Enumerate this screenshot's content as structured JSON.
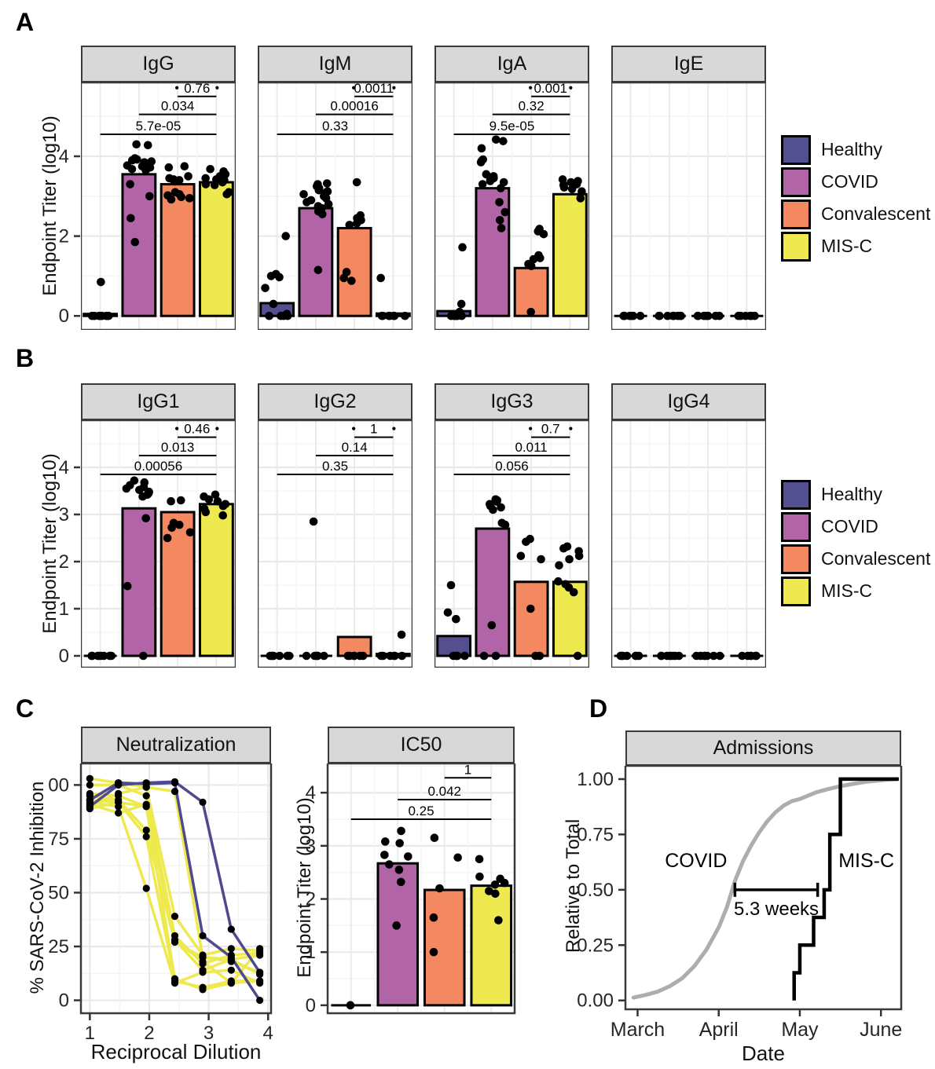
{
  "panel_labels": {
    "a": "A",
    "b": "B",
    "c": "C",
    "d": "D"
  },
  "groups": [
    {
      "name": "Healthy",
      "color": "#54508F"
    },
    {
      "name": "COVID",
      "color": "#B164A6"
    },
    {
      "name": "Convalescent",
      "color": "#F48860"
    },
    {
      "name": "MIS-C",
      "color": "#EDE94F"
    }
  ],
  "styles": {
    "header_bg": "#D8D8D8",
    "panel_border": "#3A3A3A",
    "grid_major": "#E9E9E9",
    "grid_minor": "#F5F5F5",
    "tick_color": "#262626",
    "covid_curve_color": "#ADADAD",
    "navy_line": "#4E4A8E",
    "yellow_line": "#EDE94F"
  },
  "chart_data": [
    {
      "id": "panel-a",
      "type": "bar",
      "ylabel": "Endpoint Titer (log10)",
      "yticks": [
        0,
        2,
        4
      ],
      "ylim": [
        -0.35,
        5.85
      ],
      "facets": [
        {
          "title": "IgG",
          "bar_values": [
            0.05,
            3.55,
            3.3,
            3.35
          ],
          "points": [
            [
              0,
              0,
              0,
              0,
              0,
              0,
              0,
              0,
              0.85
            ],
            [
              4.3,
              4.28,
              3.95,
              3.92,
              3.9,
              3.87,
              3.85,
              3.82,
              3.8,
              3.77,
              3.75,
              3.72,
              3.68,
              3.65,
              3.3,
              3.0,
              2.45,
              1.85
            ],
            [
              3.75,
              3.72,
              3.5,
              3.45,
              3.42,
              3.4,
              3.37,
              3.1,
              3.05,
              3.02,
              2.98,
              2.95,
              2.92
            ],
            [
              3.68,
              3.62,
              3.55,
              3.5,
              3.45,
              3.42,
              3.4,
              3.35,
              3.3,
              3.28,
              3.1,
              3.05
            ]
          ],
          "pvalues": [
            {
              "label": "5.7e-05",
              "from": 0,
              "to": 3,
              "y": 4.55
            },
            {
              "label": "0.034",
              "from": 1,
              "to": 3,
              "y": 5.05
            },
            {
              "label": "0.76",
              "from": 2,
              "to": 3,
              "y": 5.5,
              "end_dots": true
            }
          ]
        },
        {
          "title": "IgM",
          "bar_values": [
            0.32,
            2.7,
            2.2,
            0.06
          ],
          "points": [
            [
              2.0,
              1.05,
              1.0,
              0.97,
              0.7,
              0.3,
              0.05,
              0,
              0,
              0,
              0
            ],
            [
              3.32,
              3.3,
              3.25,
              3.2,
              3.15,
              3.12,
              3.1,
              3.05,
              3.0,
              2.95,
              2.9,
              2.85,
              2.8,
              2.75,
              2.7,
              2.62,
              2.55,
              1.15
            ],
            [
              3.35,
              2.52,
              2.45,
              2.4,
              2.32,
              2.28,
              1.1,
              0.95,
              0.88
            ],
            [
              0.95,
              0,
              0,
              0,
              0,
              0,
              0,
              0
            ]
          ],
          "pvalues": [
            {
              "label": "0.33",
              "from": 0,
              "to": 3,
              "y": 4.55
            },
            {
              "label": "0.00016",
              "from": 1,
              "to": 3,
              "y": 5.05
            },
            {
              "label": "0.0011",
              "from": 2,
              "to": 3,
              "y": 5.5,
              "end_dots": true
            }
          ]
        },
        {
          "title": "IgA",
          "bar_values": [
            0.12,
            3.2,
            1.2,
            3.05
          ],
          "points": [
            [
              1.72,
              0.3,
              0.1,
              0,
              0,
              0,
              0,
              0
            ],
            [
              4.42,
              4.38,
              4.2,
              3.92,
              3.88,
              3.85,
              3.55,
              3.5,
              3.45,
              3.42,
              3.38,
              3.35,
              3.3,
              3.2,
              2.85,
              2.6,
              2.4,
              2.2
            ],
            [
              2.18,
              2.12,
              2.05,
              1.52,
              1.45,
              1.42,
              1.3,
              1.25,
              0.1
            ],
            [
              3.42,
              3.38,
              3.35,
              3.3,
              3.28,
              3.22,
              3.18,
              3.12,
              2.95
            ]
          ],
          "pvalues": [
            {
              "label": "9.5e-05",
              "from": 0,
              "to": 3,
              "y": 4.55
            },
            {
              "label": "0.32",
              "from": 1,
              "to": 3,
              "y": 5.05
            },
            {
              "label": "0.001",
              "from": 2,
              "to": 3,
              "y": 5.5,
              "end_dots": true
            }
          ]
        },
        {
          "title": "IgE",
          "bar_values": [
            0,
            0,
            0,
            0
          ],
          "points": [
            [
              0,
              0,
              0,
              0,
              0,
              0,
              0
            ],
            [
              0,
              0,
              0,
              0,
              0,
              0,
              0,
              0
            ],
            [
              0,
              0,
              0,
              0,
              0,
              0,
              0
            ],
            [
              0,
              0,
              0,
              0,
              0,
              0
            ]
          ],
          "pvalues": []
        }
      ]
    },
    {
      "id": "panel-b",
      "type": "bar",
      "ylabel": "Endpoint Titer (log10)",
      "yticks": [
        0,
        1,
        2,
        3,
        4
      ],
      "ylim": [
        -0.25,
        5.0
      ],
      "facets": [
        {
          "title": "IgG1",
          "bar_values": [
            0,
            3.13,
            3.05,
            3.22
          ],
          "points": [
            [
              0,
              0,
              0,
              0,
              0,
              0,
              0,
              0
            ],
            [
              3.72,
              3.68,
              3.62,
              3.58,
              3.55,
              3.52,
              3.48,
              3.45,
              3.42,
              3.38,
              2.92,
              1.48,
              0
            ],
            [
              3.3,
              3.28,
              2.82,
              2.78,
              2.72,
              2.62,
              2.5
            ],
            [
              3.42,
              3.38,
              3.32,
              3.28,
              3.22,
              3.18,
              3.12,
              3.05,
              2.98
            ]
          ],
          "pvalues": [
            {
              "label": "0.00056",
              "from": 0,
              "to": 3,
              "y": 3.85
            },
            {
              "label": "0.013",
              "from": 1,
              "to": 3,
              "y": 4.25
            },
            {
              "label": "0.46",
              "from": 2,
              "to": 3,
              "y": 4.64,
              "end_dots": true
            }
          ]
        },
        {
          "title": "IgG2",
          "bar_values": [
            0,
            0,
            0.4,
            0.04
          ],
          "points": [
            [
              0,
              0,
              0,
              0,
              0,
              0,
              0
            ],
            [
              2.85,
              0,
              0,
              0,
              0,
              0,
              0
            ],
            [
              0,
              0,
              0,
              0,
              0,
              0
            ],
            [
              0.45,
              0,
              0,
              0,
              0,
              0,
              0
            ]
          ],
          "pvalues": [
            {
              "label": "0.35",
              "from": 0,
              "to": 3,
              "y": 3.85
            },
            {
              "label": "0.14",
              "from": 1,
              "to": 3,
              "y": 4.25
            },
            {
              "label": "1",
              "from": 2,
              "to": 3,
              "y": 4.64,
              "end_dots": true
            }
          ]
        },
        {
          "title": "IgG3",
          "bar_values": [
            0.42,
            2.7,
            1.57,
            1.57
          ],
          "points": [
            [
              1.5,
              0.92,
              0.78,
              0,
              0,
              0,
              0,
              0
            ],
            [
              3.32,
              3.3,
              3.27,
              3.22,
              3.18,
              3.15,
              3.1,
              2.82,
              2.78,
              0.65,
              0,
              0
            ],
            [
              2.48,
              2.42,
              2.12,
              2.05,
              1.0,
              0,
              0
            ],
            [
              2.32,
              2.28,
              2.22,
              2.12,
              2.05,
              1.92,
              1.58,
              1.52,
              1.45,
              1.35,
              0
            ]
          ],
          "pvalues": [
            {
              "label": "0.056",
              "from": 0,
              "to": 3,
              "y": 3.85
            },
            {
              "label": "0.011",
              "from": 1,
              "to": 3,
              "y": 4.25
            },
            {
              "label": "0.7",
              "from": 2,
              "to": 3,
              "y": 4.64,
              "end_dots": true
            }
          ]
        },
        {
          "title": "IgG4",
          "bar_values": [
            0,
            0,
            0,
            0
          ],
          "points": [
            [
              0,
              0,
              0,
              0,
              0,
              0,
              0
            ],
            [
              0,
              0,
              0,
              0,
              0,
              0,
              0,
              0
            ],
            [
              0,
              0,
              0,
              0,
              0,
              0,
              0
            ],
            [
              0,
              0,
              0,
              0,
              0,
              0
            ]
          ],
          "pvalues": []
        }
      ]
    },
    {
      "id": "neutralization",
      "type": "line",
      "title": "Neutralization",
      "xlabel": "Reciprocal Dilution",
      "ylabel": "% SARS-CoV-2 Inhibition",
      "xticks": [
        1,
        2,
        3,
        4
      ],
      "xticks_minor": [
        1.5,
        2.5,
        3.5
      ],
      "yticks": [
        0,
        25,
        50,
        75,
        100
      ],
      "xlim": [
        0.85,
        4.05
      ],
      "ylim": [
        -6,
        110
      ],
      "x": [
        1,
        1.48,
        1.95,
        2.43,
        2.9,
        3.38,
        3.86
      ],
      "series": [
        {
          "color": "#EDE94F",
          "values": [
            103,
            101,
            99,
            39,
            21,
            24,
            23
          ]
        },
        {
          "color": "#EDE94F",
          "values": [
            100,
            100,
            95,
            30,
            17,
            21,
            22
          ]
        },
        {
          "color": "#EDE94F",
          "values": [
            96,
            95,
            90,
            28,
            14,
            19,
            21
          ]
        },
        {
          "color": "#EDE94F",
          "values": [
            95,
            93,
            79,
            27,
            20,
            18,
            13
          ]
        },
        {
          "color": "#EDE94F",
          "values": [
            93,
            92,
            76,
            9,
            6,
            9,
            9
          ]
        },
        {
          "color": "#EDE94F",
          "values": [
            92,
            90,
            52,
            8,
            13,
            14,
            8
          ]
        },
        {
          "color": "#EDE94F",
          "values": [
            91,
            87,
            91,
            28,
            18,
            8,
            24
          ]
        },
        {
          "color": "#EDE94F",
          "values": [
            90,
            96,
            99,
            97,
            20,
            19,
            12
          ]
        },
        {
          "color": "#EDE94F",
          "values": [
            89,
            92,
            90,
            10,
            5,
            8,
            9
          ]
        },
        {
          "color": "#4E4A8E",
          "values": [
            90,
            100,
            101,
            101.5,
            92,
            33,
            13
          ]
        },
        {
          "color": "#4E4A8E",
          "values": [
            93,
            101,
            100.5,
            101,
            30,
            20,
            0
          ]
        }
      ]
    },
    {
      "id": "ic50",
      "type": "bar",
      "title": "IC50",
      "ylabel": "Endpoint Titer (log10)",
      "yticks": [
        0,
        1,
        2,
        3,
        4
      ],
      "ylim": [
        -0.15,
        4.55
      ],
      "facets": [
        {
          "title": "IC50",
          "bar_values": [
            0,
            2.67,
            2.17,
            2.25
          ],
          "points": [
            [
              0
            ],
            [
              3.28,
              3.08,
              3.05,
              2.83,
              2.8,
              2.65,
              2.55,
              2.32,
              1.5
            ],
            [
              3.15,
              2.78,
              2.2,
              1.65,
              1.0
            ],
            [
              2.75,
              2.42,
              2.38,
              2.3,
              2.27,
              2.15,
              2.1,
              1.6
            ]
          ],
          "pvalues": [
            {
              "label": "0.25",
              "from": 0,
              "to": 3,
              "y": 3.5
            },
            {
              "label": "0.042",
              "from": 1,
              "to": 3,
              "y": 3.87
            },
            {
              "label": "1",
              "from": 2,
              "to": 3,
              "y": 4.28
            }
          ]
        }
      ]
    },
    {
      "id": "admissions",
      "type": "step",
      "title": "Admissions",
      "xlabel": "Date",
      "ylabel": "Relative to Total",
      "xtick_labels": [
        "March",
        "April",
        "May",
        "June"
      ],
      "xtick_values": [
        0,
        1,
        2,
        3
      ],
      "ytick_labels": [
        "0.00",
        "0.25",
        "0.50",
        "0.75",
        "1.00"
      ],
      "ytick_values": [
        0,
        0.25,
        0.5,
        0.75,
        1
      ],
      "xlim": [
        -0.15,
        3.25
      ],
      "ylim": [
        -0.04,
        1.06
      ],
      "covid_curve": [
        [
          -0.05,
          0.013
        ],
        [
          0.1,
          0.025
        ],
        [
          0.25,
          0.04
        ],
        [
          0.4,
          0.065
        ],
        [
          0.55,
          0.1
        ],
        [
          0.7,
          0.155
        ],
        [
          0.85,
          0.23
        ],
        [
          1.0,
          0.33
        ],
        [
          1.1,
          0.42
        ],
        [
          1.2,
          0.54
        ],
        [
          1.3,
          0.63
        ],
        [
          1.4,
          0.7
        ],
        [
          1.5,
          0.76
        ],
        [
          1.6,
          0.81
        ],
        [
          1.7,
          0.85
        ],
        [
          1.8,
          0.88
        ],
        [
          1.9,
          0.9
        ],
        [
          2.0,
          0.91
        ],
        [
          2.1,
          0.925
        ],
        [
          2.2,
          0.94
        ],
        [
          2.35,
          0.955
        ],
        [
          2.5,
          0.968
        ],
        [
          2.65,
          0.978
        ],
        [
          2.8,
          0.987
        ],
        [
          2.95,
          0.993
        ],
        [
          3.1,
          0.998
        ],
        [
          3.2,
          1.0
        ]
      ],
      "misc_steps": [
        [
          1.93,
          0
        ],
        [
          1.93,
          0.125
        ],
        [
          2.0,
          0.125
        ],
        [
          2.0,
          0.25
        ],
        [
          2.17,
          0.25
        ],
        [
          2.17,
          0.375
        ],
        [
          2.3,
          0.375
        ],
        [
          2.3,
          0.5
        ],
        [
          2.37,
          0.5
        ],
        [
          2.37,
          0.75
        ],
        [
          2.5,
          0.75
        ],
        [
          2.5,
          1.0
        ],
        [
          3.22,
          1.0
        ]
      ],
      "labels": {
        "covid": {
          "text": "COVID",
          "x": 0.72,
          "y": 0.63
        },
        "misc": {
          "text": "MIS-C",
          "x": 2.82,
          "y": 0.63
        }
      },
      "gap_bracket": {
        "label": "5.3 weeks",
        "x1": 1.2,
        "x2": 2.22,
        "y": 0.5
      }
    }
  ]
}
